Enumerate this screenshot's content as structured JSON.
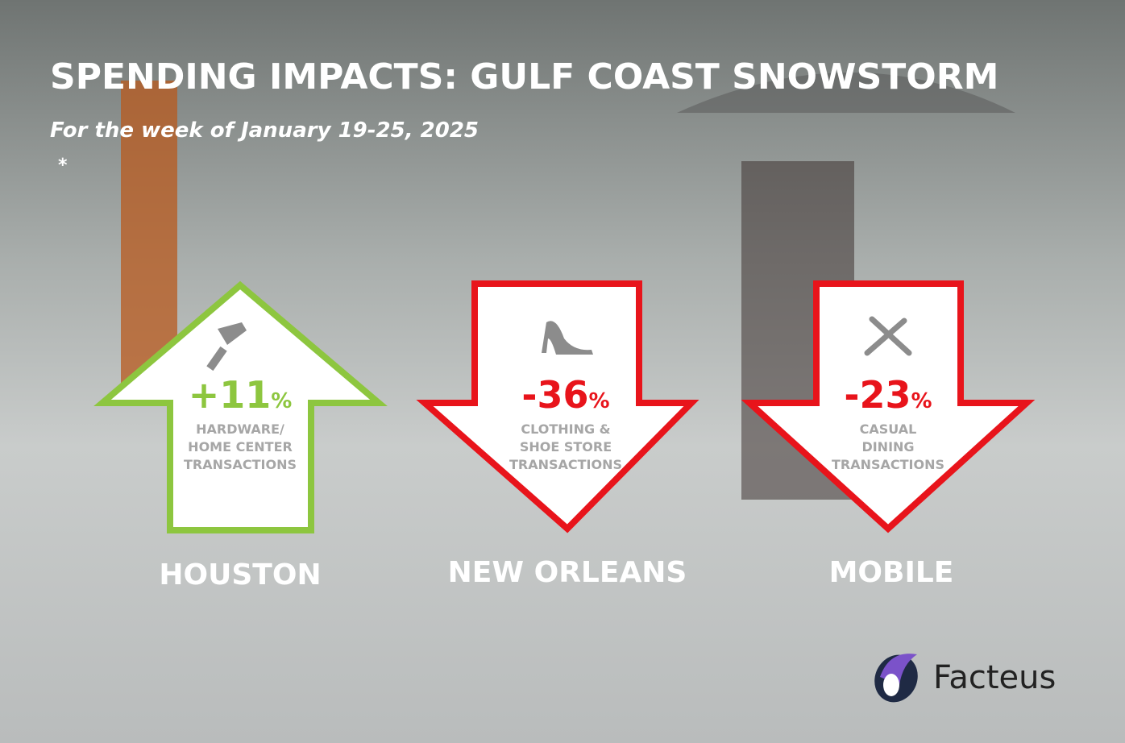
{
  "header": {
    "title": "SPENDING IMPACTS: GULF COAST SNOWSTORM",
    "subtitle": "For the week of January 19-25, 2025",
    "note": "*"
  },
  "cards": [
    {
      "value": "+11",
      "unit": "%",
      "label": [
        "HARDWARE/",
        "HOME CENTER",
        "TRANSACTIONS"
      ],
      "city": "HOUSTON"
    },
    {
      "value": "-36",
      "unit": "%",
      "label": [
        "CLOTHING &",
        "SHOE STORE",
        "TRANSACTIONS"
      ],
      "city": "NEW ORLEANS"
    },
    {
      "value": "-23",
      "unit": "%",
      "label": [
        "CASUAL",
        "DINING",
        "TRANSACTIONS"
      ],
      "city": "MOBILE"
    }
  ],
  "logo": {
    "text": "Facteus"
  }
}
